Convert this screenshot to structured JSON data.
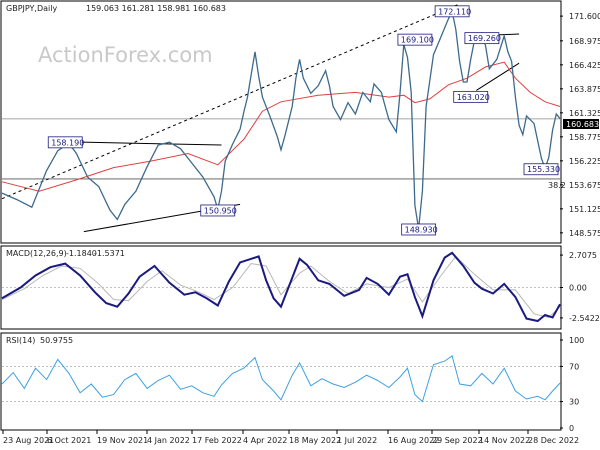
{
  "chart_data": {
    "type": "line",
    "title": "GBPJPY,Daily",
    "ohlc_values": "159.063 161.281 158.981 160.683",
    "watermark": "ActionForex.com",
    "x_ticks": [
      "23 Aug 2021",
      "6 Oct 2021",
      "19 Nov 2021",
      "4 Jan 2022",
      "17 Feb 2022",
      "4 Apr 2022",
      "18 May 2022",
      "1 Jul 2022",
      "16 Aug 2022",
      "29 Sep 2022",
      "14 Nov 2022",
      "28 Dec 2022"
    ],
    "price_panel": {
      "ylim": [
        147.6,
        173.1
      ],
      "y_ticks": [
        148.575,
        151.125,
        153.675,
        156.225,
        158.775,
        161.325,
        163.875,
        166.425,
        168.975,
        171.6
      ],
      "last_price": "160.683",
      "fib_label": "38.2",
      "fib_level": 154.3,
      "price_points": [
        [
          0,
          152.8
        ],
        [
          8,
          152.1
        ],
        [
          16,
          151.3
        ],
        [
          24,
          155.2
        ],
        [
          30,
          157.3
        ],
        [
          36,
          158.1
        ],
        [
          40,
          157.0
        ],
        [
          46,
          154.5
        ],
        [
          52,
          153.5
        ],
        [
          58,
          151.0
        ],
        [
          62,
          150.0
        ],
        [
          66,
          151.6
        ],
        [
          72,
          153.0
        ],
        [
          78,
          155.6
        ],
        [
          84,
          157.9
        ],
        [
          90,
          158.2
        ],
        [
          96,
          157.5
        ],
        [
          102,
          156.0
        ],
        [
          108,
          154.5
        ],
        [
          114,
          152.4
        ],
        [
          116,
          151.1
        ],
        [
          118,
          153.0
        ],
        [
          120,
          156.2
        ],
        [
          124,
          158.0
        ],
        [
          128,
          159.6
        ],
        [
          130,
          161.4
        ],
        [
          132,
          163.0
        ],
        [
          134,
          165.4
        ],
        [
          136,
          167.8
        ],
        [
          138,
          165.2
        ],
        [
          140,
          163.0
        ],
        [
          144,
          161.0
        ],
        [
          148,
          158.8
        ],
        [
          150,
          157.4
        ],
        [
          152,
          158.8
        ],
        [
          156,
          162.0
        ],
        [
          158,
          165.0
        ],
        [
          160,
          167.0
        ],
        [
          162,
          165.0
        ],
        [
          166,
          163.4
        ],
        [
          170,
          164.2
        ],
        [
          174,
          165.8
        ],
        [
          176,
          164.2
        ],
        [
          178,
          162.0
        ],
        [
          182,
          160.6
        ],
        [
          186,
          162.4
        ],
        [
          190,
          161.2
        ],
        [
          194,
          163.5
        ],
        [
          198,
          162.5
        ],
        [
          200,
          164.4
        ],
        [
          204,
          163.5
        ],
        [
          206,
          162.0
        ],
        [
          208,
          160.6
        ],
        [
          212,
          159.3
        ],
        [
          214,
          163.4
        ],
        [
          216,
          168.6
        ],
        [
          218,
          167.2
        ],
        [
          220,
          163.5
        ],
        [
          222,
          151.5
        ],
        [
          224,
          149.0
        ],
        [
          226,
          153.0
        ],
        [
          228,
          162.0
        ],
        [
          232,
          167.5
        ],
        [
          236,
          169.4
        ],
        [
          240,
          171.3
        ],
        [
          242,
          172.1
        ],
        [
          244,
          170.2
        ],
        [
          246,
          166.8
        ],
        [
          248,
          164.6
        ],
        [
          250,
          164.6
        ],
        [
          252,
          167.0
        ],
        [
          254,
          169.0
        ],
        [
          258,
          169.8
        ],
        [
          260,
          168.4
        ],
        [
          262,
          166.0
        ],
        [
          266,
          167.0
        ],
        [
          270,
          169.5
        ],
        [
          272,
          167.8
        ],
        [
          274,
          166.8
        ],
        [
          276,
          163.0
        ],
        [
          278,
          160.0
        ],
        [
          280,
          159.0
        ],
        [
          282,
          161.0
        ],
        [
          286,
          160.2
        ],
        [
          290,
          156.5
        ],
        [
          292,
          155.4
        ],
        [
          294,
          156.6
        ],
        [
          296,
          159.5
        ],
        [
          298,
          161.2
        ],
        [
          300,
          160.7
        ]
      ],
      "ma_points": [
        [
          0,
          154.0
        ],
        [
          20,
          153.0
        ],
        [
          40,
          154.2
        ],
        [
          60,
          155.5
        ],
        [
          80,
          156.2
        ],
        [
          100,
          157.0
        ],
        [
          116,
          155.8
        ],
        [
          130,
          158.5
        ],
        [
          140,
          161.5
        ],
        [
          150,
          162.5
        ],
        [
          170,
          163.2
        ],
        [
          190,
          163.5
        ],
        [
          208,
          163.0
        ],
        [
          216,
          163.2
        ],
        [
          222,
          162.4
        ],
        [
          230,
          162.8
        ],
        [
          240,
          164.3
        ],
        [
          250,
          165.0
        ],
        [
          260,
          166.2
        ],
        [
          270,
          166.7
        ],
        [
          276,
          165.0
        ],
        [
          284,
          163.5
        ],
        [
          292,
          162.5
        ],
        [
          300,
          162.0
        ]
      ],
      "annotations": [
        {
          "label": "172.110",
          "x": 242,
          "y": 172.11
        },
        {
          "label": "169.100",
          "x": 222,
          "y": 169.1
        },
        {
          "label": "169.260",
          "x": 258,
          "y": 169.26
        },
        {
          "label": "163.020",
          "x": 252,
          "y": 163.02
        },
        {
          "label": "158.190",
          "x": 34,
          "y": 158.19
        },
        {
          "label": "150.950",
          "x": 116,
          "y": 150.95
        },
        {
          "label": "148.930",
          "x": 224,
          "y": 148.93
        },
        {
          "label": "155.330",
          "x": 292,
          "y": 155.33
        }
      ]
    },
    "macd_panel": {
      "label": "MACD(12,26,9)",
      "line_value": "-1.1840",
      "signal_value": "-1.5371",
      "ylim": [
        -3.3,
        3.3
      ],
      "y_ticks": [
        2.7075,
        0.0,
        -2.5422
      ],
      "y_tick_labels": [
        "2.7075",
        "0.00",
        "-2.5422"
      ],
      "points": [
        [
          0,
          -0.9
        ],
        [
          10,
          0.0
        ],
        [
          18,
          1.0
        ],
        [
          26,
          1.7
        ],
        [
          34,
          2.0
        ],
        [
          42,
          1.0
        ],
        [
          50,
          -0.4
        ],
        [
          56,
          -1.3
        ],
        [
          62,
          -1.6
        ],
        [
          68,
          -0.5
        ],
        [
          74,
          0.9
        ],
        [
          82,
          1.8
        ],
        [
          90,
          0.4
        ],
        [
          98,
          -0.6
        ],
        [
          104,
          -0.4
        ],
        [
          110,
          -0.9
        ],
        [
          116,
          -1.5
        ],
        [
          122,
          0.5
        ],
        [
          128,
          2.1
        ],
        [
          134,
          2.4
        ],
        [
          138,
          2.6
        ],
        [
          142,
          0.6
        ],
        [
          146,
          -0.9
        ],
        [
          150,
          -1.6
        ],
        [
          156,
          0.8
        ],
        [
          160,
          2.4
        ],
        [
          164,
          1.9
        ],
        [
          170,
          0.6
        ],
        [
          176,
          0.3
        ],
        [
          184,
          -0.7
        ],
        [
          192,
          -0.2
        ],
        [
          196,
          0.8
        ],
        [
          202,
          0.3
        ],
        [
          208,
          -0.6
        ],
        [
          214,
          0.9
        ],
        [
          218,
          1.1
        ],
        [
          222,
          -0.8
        ],
        [
          226,
          -2.4
        ],
        [
          232,
          0.6
        ],
        [
          238,
          2.5
        ],
        [
          242,
          2.9
        ],
        [
          248,
          1.8
        ],
        [
          254,
          0.4
        ],
        [
          258,
          -0.1
        ],
        [
          264,
          -0.5
        ],
        [
          270,
          0.3
        ],
        [
          276,
          -0.8
        ],
        [
          282,
          -2.6
        ],
        [
          288,
          -2.8
        ],
        [
          292,
          -2.3
        ],
        [
          296,
          -2.5
        ],
        [
          300,
          -1.4
        ]
      ],
      "signal_points": [
        [
          0,
          -1.0
        ],
        [
          12,
          -0.1
        ],
        [
          22,
          1.0
        ],
        [
          32,
          1.8
        ],
        [
          42,
          1.6
        ],
        [
          52,
          0.3
        ],
        [
          60,
          -1.0
        ],
        [
          68,
          -1.1
        ],
        [
          78,
          0.5
        ],
        [
          86,
          1.4
        ],
        [
          96,
          0.2
        ],
        [
          106,
          -0.4
        ],
        [
          114,
          -1.0
        ],
        [
          124,
          0.0
        ],
        [
          134,
          2.0
        ],
        [
          142,
          1.8
        ],
        [
          150,
          -0.6
        ],
        [
          160,
          1.2
        ],
        [
          166,
          1.8
        ],
        [
          176,
          0.5
        ],
        [
          186,
          -0.5
        ],
        [
          196,
          0.3
        ],
        [
          208,
          0.0
        ],
        [
          218,
          0.7
        ],
        [
          226,
          -1.2
        ],
        [
          236,
          1.0
        ],
        [
          244,
          2.6
        ],
        [
          254,
          1.1
        ],
        [
          264,
          -0.2
        ],
        [
          276,
          -0.2
        ],
        [
          286,
          -2.2
        ],
        [
          294,
          -2.5
        ],
        [
          300,
          -1.6
        ]
      ]
    },
    "rsi_panel": {
      "label": "RSI(14)",
      "value": "50.9755",
      "ylim": [
        0,
        100
      ],
      "y_ticks": [
        100,
        70,
        30,
        0
      ],
      "points": [
        [
          0,
          50
        ],
        [
          6,
          63
        ],
        [
          12,
          45
        ],
        [
          18,
          68
        ],
        [
          24,
          55
        ],
        [
          30,
          78
        ],
        [
          36,
          62
        ],
        [
          42,
          40
        ],
        [
          48,
          50
        ],
        [
          54,
          35
        ],
        [
          60,
          38
        ],
        [
          66,
          55
        ],
        [
          72,
          62
        ],
        [
          78,
          45
        ],
        [
          84,
          54
        ],
        [
          90,
          60
        ],
        [
          96,
          44
        ],
        [
          102,
          48
        ],
        [
          108,
          40
        ],
        [
          114,
          36
        ],
        [
          118,
          49
        ],
        [
          124,
          62
        ],
        [
          130,
          68
        ],
        [
          136,
          80
        ],
        [
          140,
          55
        ],
        [
          146,
          42
        ],
        [
          150,
          32
        ],
        [
          156,
          60
        ],
        [
          160,
          74
        ],
        [
          166,
          48
        ],
        [
          172,
          56
        ],
        [
          178,
          50
        ],
        [
          184,
          46
        ],
        [
          190,
          52
        ],
        [
          196,
          60
        ],
        [
          202,
          54
        ],
        [
          208,
          46
        ],
        [
          214,
          58
        ],
        [
          218,
          68
        ],
        [
          222,
          38
        ],
        [
          226,
          30
        ],
        [
          232,
          72
        ],
        [
          238,
          76
        ],
        [
          242,
          82
        ],
        [
          246,
          50
        ],
        [
          252,
          48
        ],
        [
          258,
          62
        ],
        [
          264,
          50
        ],
        [
          270,
          68
        ],
        [
          276,
          42
        ],
        [
          282,
          33
        ],
        [
          288,
          36
        ],
        [
          292,
          32
        ],
        [
          296,
          42
        ],
        [
          300,
          51
        ]
      ]
    }
  }
}
